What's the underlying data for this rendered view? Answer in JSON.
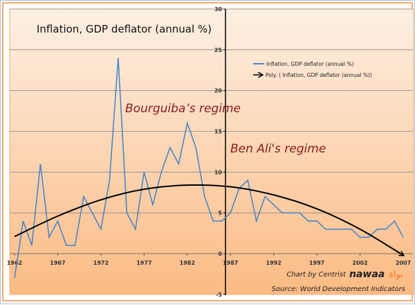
{
  "chart_data": {
    "type": "line",
    "title": "Inflation, GDP deflator (annual %)",
    "xlabel": "",
    "ylabel": "",
    "xlim": [
      1962,
      2007
    ],
    "ylim": [
      -5,
      30
    ],
    "x_ticks": [
      "1962",
      "1967",
      "1972",
      "1977",
      "1982",
      "1987",
      "1992",
      "1997",
      "2002",
      "2007"
    ],
    "y_ticks": [
      "-5",
      "0",
      "5",
      "10",
      "15",
      "20",
      "25",
      "30"
    ],
    "grid": true,
    "legend_placement": "top-right",
    "x": [
      1962,
      1963,
      1964,
      1965,
      1966,
      1967,
      1968,
      1969,
      1970,
      1971,
      1972,
      1973,
      1974,
      1975,
      1976,
      1977,
      1978,
      1979,
      1980,
      1981,
      1982,
      1983,
      1984,
      1985,
      1986,
      1987,
      1988,
      1989,
      1990,
      1991,
      1992,
      1993,
      1994,
      1995,
      1996,
      1997,
      1998,
      1999,
      2000,
      2001,
      2002,
      2003,
      2004,
      2005,
      2006,
      2007
    ],
    "series": [
      {
        "name": "Inflation, GDP deflator (annual %)",
        "color": "#4a86c8",
        "values": [
          -3,
          4,
          1,
          11,
          2,
          4,
          1,
          1,
          7,
          5,
          3,
          9,
          24,
          5,
          3,
          10,
          6,
          10,
          13,
          11,
          16,
          13,
          7,
          4,
          4,
          5,
          8,
          9,
          4,
          7,
          6,
          5,
          5,
          5,
          4,
          4,
          3,
          3,
          3,
          3,
          2,
          2,
          3,
          3,
          4,
          2
        ]
      },
      {
        "name": "Poly. ( Inflation, GDP deflator (annual %))",
        "color": "#000000",
        "trend_x": [
          1962,
          1967,
          1972,
          1977,
          1982,
          1987,
          1992,
          1997,
          2002,
          2007
        ],
        "trend_values": [
          2.1,
          4.6,
          6.6,
          7.9,
          8.4,
          8.2,
          7.2,
          5.5,
          3.0,
          -0.2
        ]
      }
    ],
    "annotations": [
      "Bourguiba’s regime",
      "Ben Ali's regime"
    ]
  },
  "credits": {
    "chart_by": "Chart by Centrist",
    "source": "Source: World Development Indicators",
    "logo_text": "nawaa",
    "logo_arabic": "نواة"
  },
  "colors": {
    "background_top": "#fdf0e3",
    "background_bottom": "#fbbb84",
    "frame": "#f0913a",
    "outer_border": "#a9c4e8",
    "regime_text": "#8b1a1a",
    "logo_accent": "#f07a1a"
  }
}
